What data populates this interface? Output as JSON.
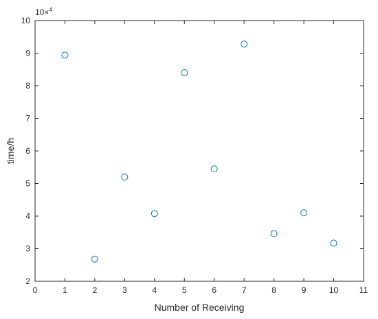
{
  "chart_data": {
    "type": "scatter",
    "title": "",
    "xlabel": "Number of Receiving",
    "ylabel": "time/h",
    "x": [
      1,
      2,
      3,
      4,
      5,
      6,
      7,
      8,
      9,
      10
    ],
    "y": [
      89400,
      26800,
      52000,
      40800,
      84000,
      54500,
      92800,
      34600,
      41000,
      31700
    ],
    "xlim": [
      0,
      11
    ],
    "ylim": [
      20000,
      100000
    ],
    "xticks": [
      "0",
      "1",
      "2",
      "3",
      "4",
      "5",
      "6",
      "7",
      "8",
      "9",
      "10",
      "11"
    ],
    "yticks": [
      "2",
      "3",
      "4",
      "5",
      "6",
      "7",
      "8",
      "9",
      "10"
    ],
    "y_exponent_base": "10",
    "y_exponent_power": "4",
    "marker": "circle",
    "marker_color": "#0072BD",
    "grid": false,
    "legend": "none"
  }
}
